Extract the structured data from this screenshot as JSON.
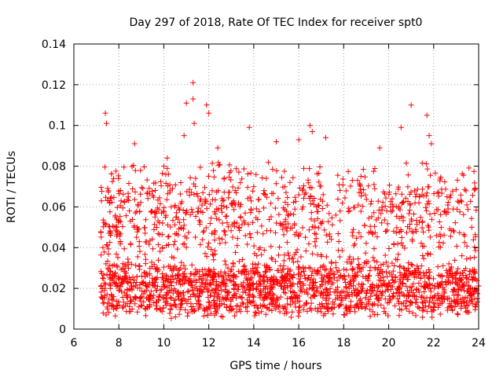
{
  "chart_data": {
    "type": "scatter",
    "title": "Day 297 of 2018, Rate Of TEC Index for receiver spt0",
    "xlabel": "GPS time / hours",
    "ylabel": "ROTI / TECUs",
    "xlim": [
      6,
      24
    ],
    "ylim": [
      0,
      0.14
    ],
    "xticks": [
      "6",
      "8",
      "10",
      "12",
      "14",
      "16",
      "18",
      "20",
      "22",
      "24"
    ],
    "yticks": [
      "0",
      "0.02",
      "0.04",
      "0.06",
      "0.08",
      "0.1",
      "0.12",
      "0.14"
    ],
    "grid": true,
    "marker": "+",
    "series": [
      {
        "name": "ROTI",
        "color": "#ff0000",
        "x_range": [
          7.2,
          24.0
        ],
        "baseline_roti": 0.02,
        "upper_band_roti": 0.07,
        "peaks": [
          {
            "x": 7.4,
            "y": 0.106
          },
          {
            "x": 7.45,
            "y": 0.101
          },
          {
            "x": 8.7,
            "y": 0.091
          },
          {
            "x": 10.15,
            "y": 0.084
          },
          {
            "x": 10.9,
            "y": 0.095
          },
          {
            "x": 11.0,
            "y": 0.111
          },
          {
            "x": 11.3,
            "y": 0.121
          },
          {
            "x": 11.3,
            "y": 0.113
          },
          {
            "x": 11.35,
            "y": 0.101
          },
          {
            "x": 11.9,
            "y": 0.11
          },
          {
            "x": 12.0,
            "y": 0.106
          },
          {
            "x": 12.4,
            "y": 0.089
          },
          {
            "x": 13.8,
            "y": 0.099
          },
          {
            "x": 15.0,
            "y": 0.092
          },
          {
            "x": 16.0,
            "y": 0.093
          },
          {
            "x": 16.5,
            "y": 0.1
          },
          {
            "x": 16.6,
            "y": 0.097
          },
          {
            "x": 17.2,
            "y": 0.094
          },
          {
            "x": 19.6,
            "y": 0.089
          },
          {
            "x": 20.55,
            "y": 0.099
          },
          {
            "x": 21.0,
            "y": 0.11
          },
          {
            "x": 21.7,
            "y": 0.105
          },
          {
            "x": 21.8,
            "y": 0.095
          },
          {
            "x": 21.9,
            "y": 0.091
          }
        ]
      }
    ]
  }
}
